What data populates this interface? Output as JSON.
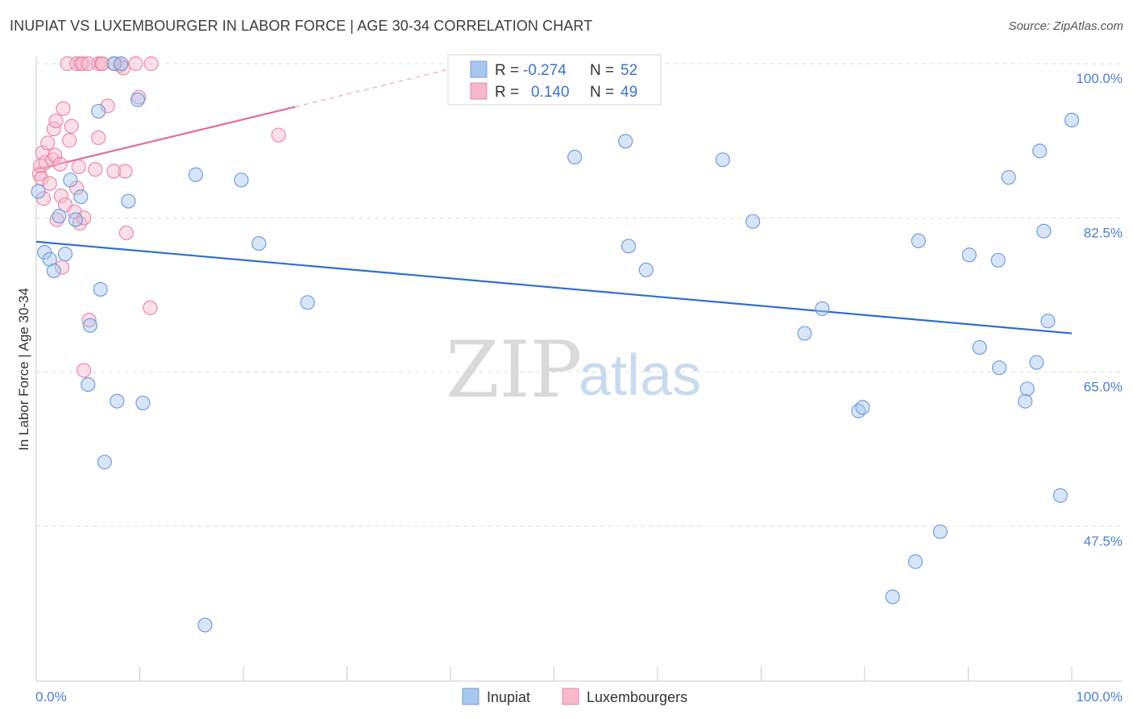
{
  "title": "INUPIAT VS LUXEMBOURGER IN LABOR FORCE | AGE 30-34 CORRELATION CHART",
  "source": "Source: ZipAtlas.com",
  "watermark": {
    "zip": "ZIP",
    "atlas": "atlas"
  },
  "colors": {
    "blue_fill": "#a9c6ee",
    "blue_stroke": "#6f9fdc",
    "blue_line": "#2f6fcb",
    "pink_fill": "#f6b8cb",
    "pink_stroke": "#e98aa8",
    "pink_line": "#e06d97",
    "grid": "#dddddd",
    "tick_text": "#4a7fd0"
  },
  "legend": {
    "rows": [
      {
        "r_label": "R =",
        "r_value": "-0.274",
        "n_label": "N =",
        "n_value": "52"
      },
      {
        "r_label": "R =",
        "r_value": "0.140",
        "n_label": "N =",
        "n_value": "49"
      }
    ]
  },
  "bottom_legend": [
    "Inupiat",
    "Luxembourgers"
  ],
  "chart_data": {
    "type": "scatter",
    "title": "INUPIAT VS LUXEMBOURGER IN LABOR FORCE | AGE 30-34 CORRELATION CHART",
    "xlabel": "",
    "ylabel": "In Labor Force | Age 30-34",
    "xlim": [
      0,
      100
    ],
    "ylim": [
      30,
      101
    ],
    "x_tick_labels": [
      "0.0%",
      "100.0%"
    ],
    "y_ticks": [
      47.5,
      65.0,
      82.5,
      100.0
    ],
    "y_tick_labels": [
      "47.5%",
      "65.0%",
      "82.5%",
      "100.0%"
    ],
    "grid": true,
    "series": [
      {
        "name": "Inupiat",
        "r": -0.274,
        "n": 52,
        "trend": {
          "x0": 0,
          "y0": 79.8,
          "x1": 100,
          "y1": 69.4
        },
        "points": [
          [
            0.2,
            85.5
          ],
          [
            0.8,
            78.6
          ],
          [
            1.3,
            77.8
          ],
          [
            1.7,
            76.5
          ],
          [
            2.2,
            82.7
          ],
          [
            2.8,
            78.4
          ],
          [
            3.3,
            86.8
          ],
          [
            3.8,
            82.3
          ],
          [
            4.3,
            84.9
          ],
          [
            5.2,
            70.3
          ],
          [
            5.0,
            63.6
          ],
          [
            6.2,
            74.4
          ],
          [
            6.0,
            94.6
          ],
          [
            6.6,
            54.8
          ],
          [
            7.5,
            100.0
          ],
          [
            7.8,
            61.7
          ],
          [
            8.2,
            100.0
          ],
          [
            8.9,
            84.4
          ],
          [
            9.8,
            95.9
          ],
          [
            10.3,
            61.5
          ],
          [
            15.4,
            87.4
          ],
          [
            16.3,
            36.3
          ],
          [
            19.8,
            86.8
          ],
          [
            21.5,
            79.6
          ],
          [
            26.2,
            72.9
          ],
          [
            52.0,
            89.4
          ],
          [
            56.9,
            91.2
          ],
          [
            57.2,
            79.3
          ],
          [
            58.9,
            76.6
          ],
          [
            66.3,
            89.1
          ],
          [
            69.2,
            82.1
          ],
          [
            74.2,
            69.4
          ],
          [
            75.9,
            72.2
          ],
          [
            79.4,
            60.6
          ],
          [
            79.8,
            61.0
          ],
          [
            82.7,
            39.5
          ],
          [
            84.9,
            43.5
          ],
          [
            85.2,
            79.9
          ],
          [
            87.3,
            46.9
          ],
          [
            90.1,
            78.3
          ],
          [
            91.1,
            67.8
          ],
          [
            93.0,
            65.5
          ],
          [
            92.9,
            77.7
          ],
          [
            93.9,
            87.1
          ],
          [
            95.5,
            61.7
          ],
          [
            95.7,
            63.1
          ],
          [
            96.6,
            66.1
          ],
          [
            96.9,
            90.1
          ],
          [
            97.3,
            81.0
          ],
          [
            97.7,
            70.8
          ],
          [
            98.9,
            51.0
          ],
          [
            100.0,
            93.6
          ]
        ]
      },
      {
        "name": "Luxembourgers",
        "r": 0.14,
        "n": 49,
        "trend": {
          "x0": 0,
          "y0": 88.0,
          "x1": 25,
          "y1": 95.1
        },
        "trend_dashed": {
          "x0": 25,
          "y0": 95.1,
          "x1": 40,
          "y1": 99.4
        },
        "points": [
          [
            0.3,
            87.5
          ],
          [
            0.4,
            88.4
          ],
          [
            0.5,
            87.0
          ],
          [
            0.6,
            89.9
          ],
          [
            0.7,
            84.7
          ],
          [
            0.9,
            88.8
          ],
          [
            1.1,
            91.0
          ],
          [
            1.3,
            86.4
          ],
          [
            1.6,
            89.1
          ],
          [
            1.7,
            92.6
          ],
          [
            1.8,
            89.6
          ],
          [
            1.9,
            93.5
          ],
          [
            2.0,
            82.3
          ],
          [
            2.3,
            88.6
          ],
          [
            2.4,
            85.0
          ],
          [
            2.5,
            76.9
          ],
          [
            2.6,
            94.9
          ],
          [
            2.8,
            84.0
          ],
          [
            3.0,
            100.0
          ],
          [
            3.2,
            91.3
          ],
          [
            3.4,
            92.9
          ],
          [
            3.7,
            83.2
          ],
          [
            3.9,
            85.9
          ],
          [
            3.9,
            100.0
          ],
          [
            4.1,
            88.3
          ],
          [
            4.2,
            81.9
          ],
          [
            4.3,
            100.0
          ],
          [
            4.5,
            100.0
          ],
          [
            4.6,
            82.5
          ],
          [
            4.6,
            65.2
          ],
          [
            5.0,
            100.0
          ],
          [
            5.1,
            70.9
          ],
          [
            5.7,
            88.0
          ],
          [
            6.0,
            91.6
          ],
          [
            6.0,
            100.0
          ],
          [
            6.3,
            100.0
          ],
          [
            6.4,
            100.0
          ],
          [
            6.9,
            95.2
          ],
          [
            7.5,
            87.8
          ],
          [
            7.6,
            100.0
          ],
          [
            8.1,
            99.8
          ],
          [
            8.4,
            99.5
          ],
          [
            8.6,
            87.8
          ],
          [
            8.7,
            80.8
          ],
          [
            9.6,
            100.0
          ],
          [
            9.9,
            96.2
          ],
          [
            11.1,
            100.0
          ],
          [
            11.0,
            72.3
          ],
          [
            23.4,
            91.9
          ]
        ]
      }
    ]
  }
}
